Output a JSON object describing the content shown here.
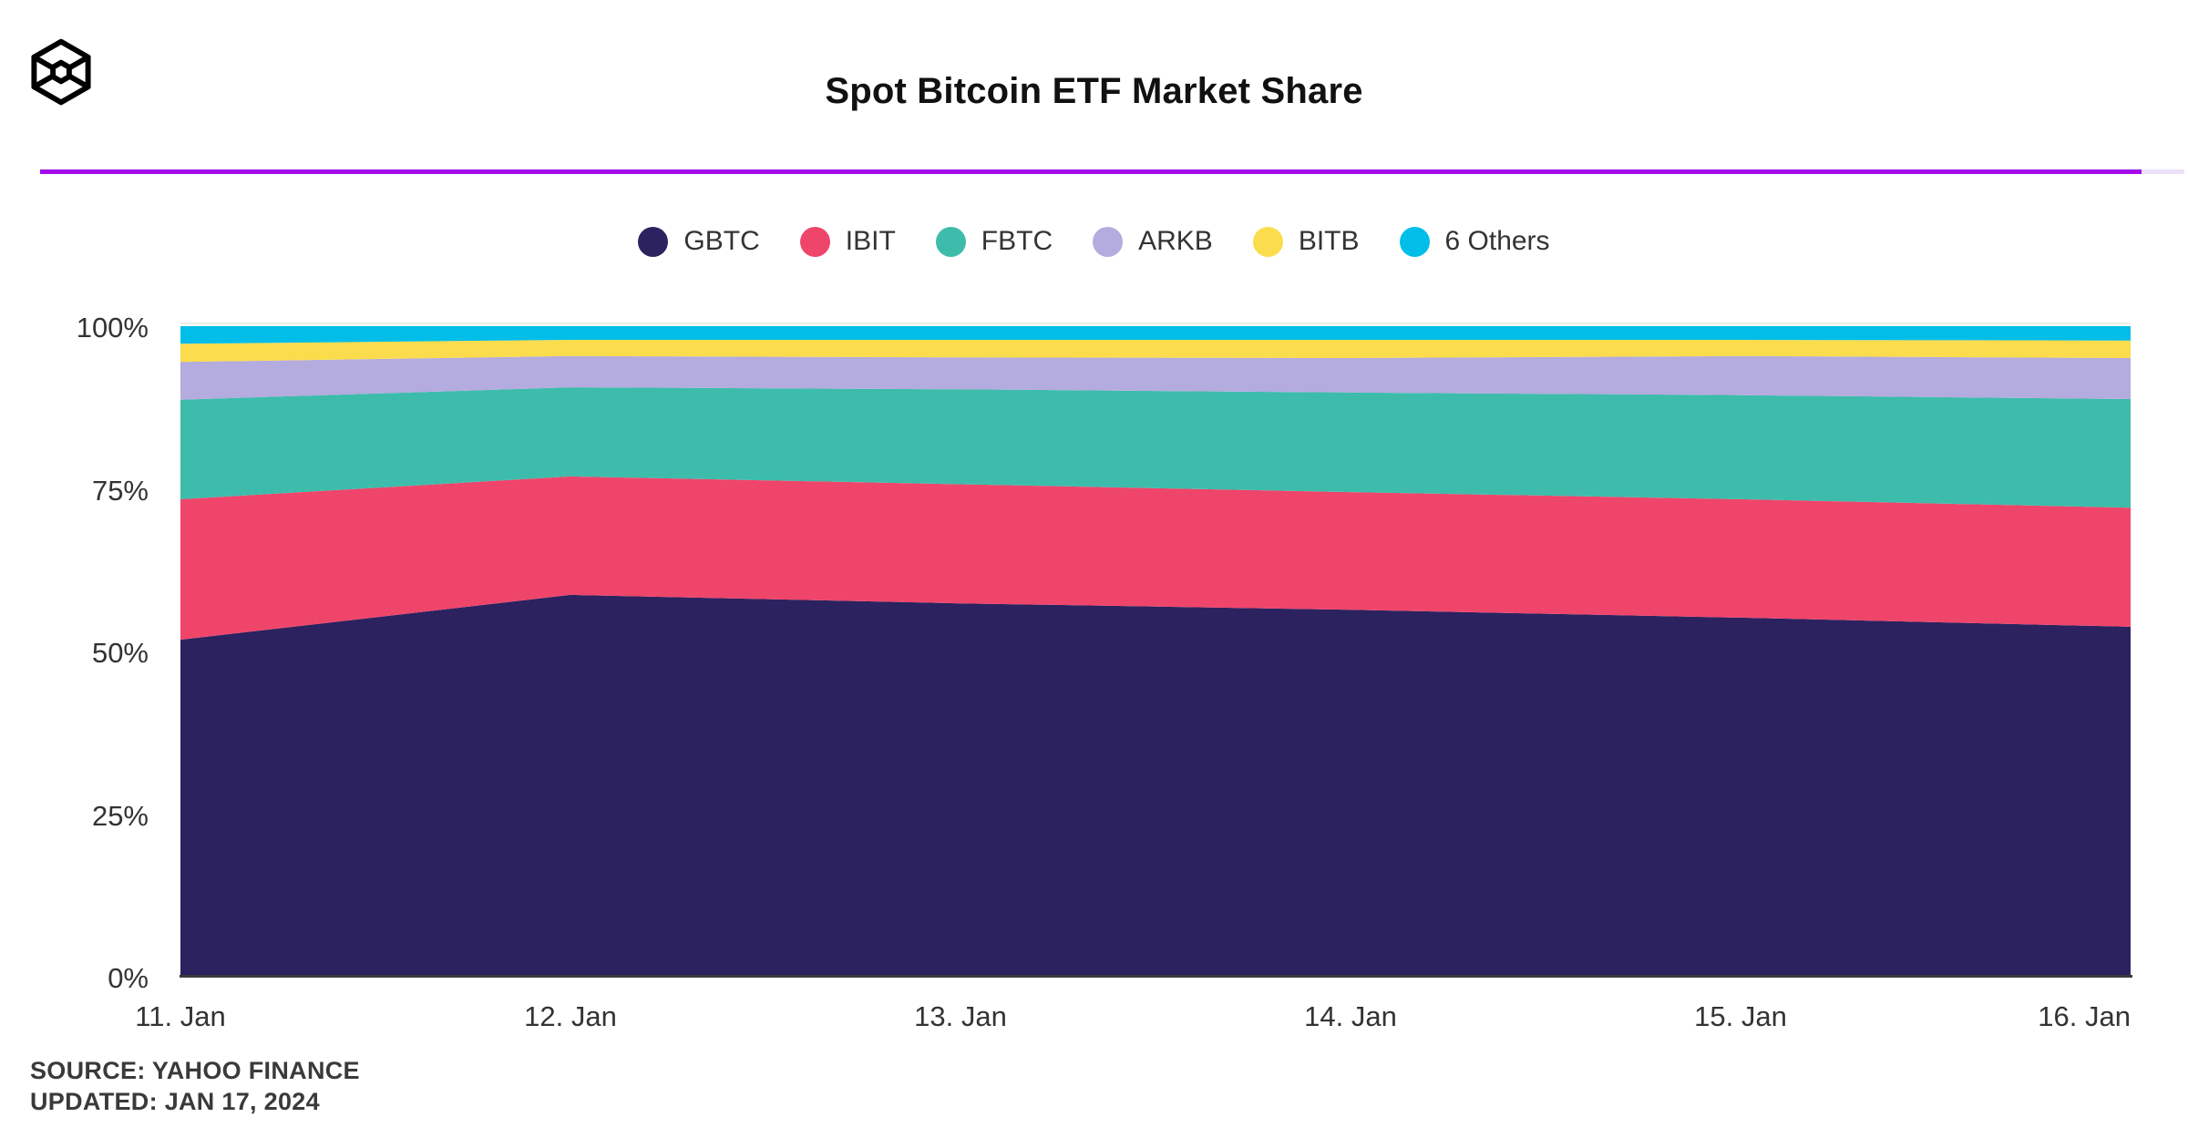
{
  "header": {
    "title": "Spot Bitcoin ETF Market Share",
    "logo_icon": "wireframe-cube-logo",
    "divider_color": "#A30BEA",
    "divider_track_color": "#ECE2F8"
  },
  "legend": {
    "items": [
      {
        "label": "GBTC",
        "color": "#2C2260"
      },
      {
        "label": "IBIT",
        "color": "#EF456A"
      },
      {
        "label": "FBTC",
        "color": "#3DBCAC"
      },
      {
        "label": "ARKB",
        "color": "#B4ABDE"
      },
      {
        "label": "BITB",
        "color": "#FADC4D"
      },
      {
        "label": "6 Others",
        "color": "#00BEE8"
      }
    ]
  },
  "axes": {
    "y_ticks": [
      {
        "value": 100,
        "label": "100%"
      },
      {
        "value": 75,
        "label": "75%"
      },
      {
        "value": 50,
        "label": "50%"
      },
      {
        "value": 25,
        "label": "25%"
      },
      {
        "value": 0,
        "label": "0%"
      }
    ],
    "x_ticks": [
      "11. Jan",
      "12. Jan",
      "13. Jan",
      "14. Jan",
      "15. Jan",
      "16. Jan"
    ]
  },
  "footer": {
    "source": "SOURCE: YAHOO FINANCE",
    "updated": "UPDATED: JAN 17, 2024"
  },
  "chart_data": {
    "type": "area",
    "stacking": "percent",
    "title": "Spot Bitcoin ETF Market Share",
    "x": [
      "11. Jan",
      "12. Jan",
      "13. Jan",
      "14. Jan",
      "15. Jan",
      "16. Jan"
    ],
    "series": [
      {
        "name": "GBTC",
        "color": "#2C2260",
        "values": [
          51.8,
          58.7,
          57.4,
          56.4,
          55.2,
          53.8
        ]
      },
      {
        "name": "IBIT",
        "color": "#EF456A",
        "values": [
          21.6,
          18.2,
          18.3,
          18.1,
          18.2,
          18.3
        ]
      },
      {
        "name": "FBTC",
        "color": "#3DBCAC",
        "values": [
          15.3,
          13.7,
          14.6,
          15.3,
          16.0,
          16.7
        ]
      },
      {
        "name": "ARKB",
        "color": "#B4ABDE",
        "values": [
          5.8,
          4.8,
          4.9,
          5.3,
          6.0,
          6.3
        ]
      },
      {
        "name": "BITB",
        "color": "#FADC4D",
        "values": [
          2.8,
          2.5,
          2.7,
          2.8,
          2.5,
          2.7
        ]
      },
      {
        "name": "6 Others",
        "color": "#00BEE8",
        "values": [
          2.7,
          2.1,
          2.1,
          2.1,
          2.1,
          2.2
        ]
      }
    ],
    "xlabel": "",
    "ylabel": "",
    "ylim": [
      0,
      100
    ],
    "yticks": [
      0,
      25,
      50,
      75,
      100
    ],
    "grid": false,
    "legend_position": "top-center"
  }
}
